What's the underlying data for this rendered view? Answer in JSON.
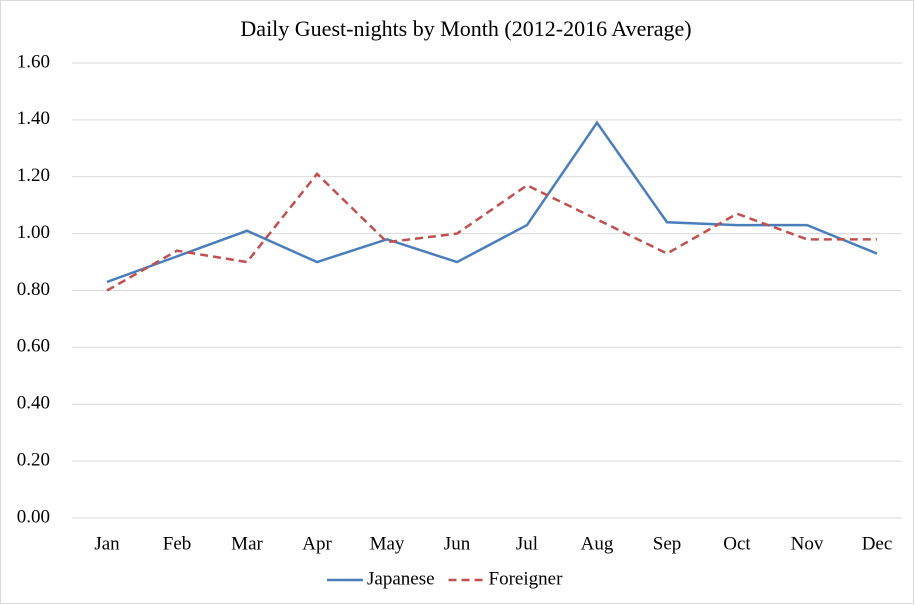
{
  "chart_data": {
    "type": "line",
    "title": "Daily Guest-nights by Month (2012-2016 Average)",
    "categories": [
      "Jan",
      "Feb",
      "Mar",
      "Apr",
      "May",
      "Jun",
      "Jul",
      "Aug",
      "Sep",
      "Oct",
      "Nov",
      "Dec"
    ],
    "series": [
      {
        "name": "Japanese",
        "color": "#4a7ebb",
        "dash": false,
        "values": [
          0.83,
          0.92,
          1.01,
          0.9,
          0.98,
          0.9,
          1.03,
          1.39,
          1.04,
          1.03,
          1.03,
          0.93
        ]
      },
      {
        "name": "Foreigner",
        "color": "#c0504d",
        "dash": true,
        "values": [
          0.8,
          0.94,
          0.9,
          1.21,
          0.97,
          1.0,
          1.17,
          1.05,
          0.93,
          1.07,
          0.98,
          0.98
        ]
      }
    ],
    "ylim": [
      0,
      1.6
    ],
    "yticks": [
      {
        "value": 0,
        "label": "0.00"
      },
      {
        "value": 0.2,
        "label": "0.20"
      },
      {
        "value": 0.4,
        "label": "0.40"
      },
      {
        "value": 0.6,
        "label": "0.60"
      },
      {
        "value": 0.8,
        "label": "0.80"
      },
      {
        "value": 1.0,
        "label": "1.00"
      },
      {
        "value": 1.2,
        "label": "1.20"
      },
      {
        "value": 1.4,
        "label": "1.40"
      },
      {
        "value": 1.6,
        "label": "1.60"
      }
    ],
    "grid": true,
    "legend": "bottom"
  }
}
